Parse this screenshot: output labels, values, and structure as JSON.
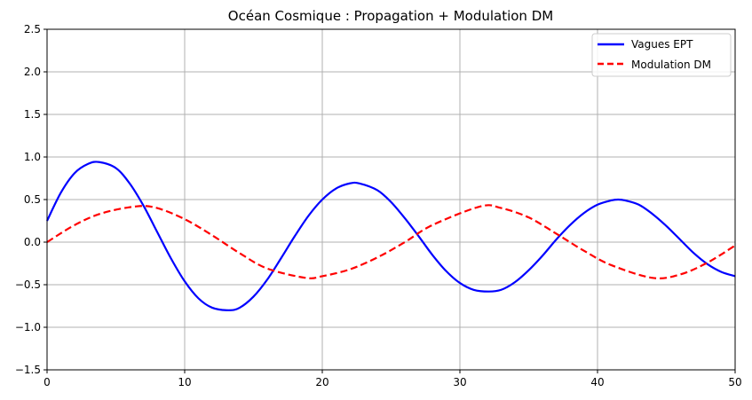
{
  "chart_data": {
    "type": "line",
    "title": "Océan Cosmique : Propagation + Modulation DM",
    "xlabel": "",
    "ylabel": "",
    "xlim": [
      0,
      50
    ],
    "ylim": [
      -1.5,
      2.5
    ],
    "xticks": [
      0,
      10,
      20,
      30,
      40,
      50
    ],
    "yticks": [
      -1.5,
      -1.0,
      -0.5,
      0.0,
      0.5,
      1.0,
      1.5,
      2.0,
      2.5
    ],
    "xtick_labels": [
      "0",
      "10",
      "20",
      "30",
      "40",
      "50"
    ],
    "ytick_labels": [
      "−1.5",
      "−1.0",
      "−0.5",
      "0.0",
      "0.5",
      "1.0",
      "1.5",
      "2.0",
      "2.5"
    ],
    "grid": true,
    "legend_position": "top-right",
    "series": [
      {
        "name": "Vagues EPT",
        "color": "#0000ff",
        "style": "solid",
        "x": [
          0,
          1,
          2,
          3,
          3.8,
          5,
          6,
          7,
          8,
          9,
          10,
          11,
          12,
          13.2,
          14,
          15,
          16,
          17,
          18,
          19,
          20,
          21,
          22,
          22.7,
          24,
          25,
          26,
          27,
          28,
          29,
          30,
          31,
          32.1,
          33,
          34,
          35,
          36,
          37,
          38,
          39,
          40,
          41,
          41.5,
          42,
          43,
          44,
          45,
          46,
          47,
          48,
          49,
          50
        ],
        "y": [
          0.25,
          0.58,
          0.81,
          0.92,
          0.94,
          0.87,
          0.69,
          0.43,
          0.12,
          -0.19,
          -0.46,
          -0.66,
          -0.77,
          -0.8,
          -0.77,
          -0.64,
          -0.44,
          -0.19,
          0.07,
          0.31,
          0.5,
          0.63,
          0.69,
          0.69,
          0.61,
          0.47,
          0.28,
          0.07,
          -0.15,
          -0.34,
          -0.48,
          -0.56,
          -0.58,
          -0.56,
          -0.47,
          -0.33,
          -0.16,
          0.03,
          0.2,
          0.34,
          0.44,
          0.49,
          0.5,
          0.49,
          0.44,
          0.33,
          0.19,
          0.03,
          -0.13,
          -0.26,
          -0.35,
          -0.4
        ]
      },
      {
        "name": "Modulation DM",
        "color": "#ff0000",
        "style": "dashed",
        "x": [
          0,
          2,
          4,
          6.5,
          8,
          10,
          12,
          14,
          16,
          18.8,
          20,
          22,
          24,
          26,
          28,
          31.5,
          33,
          35,
          37,
          39,
          41,
          44,
          46,
          48,
          50
        ],
        "y": [
          0.0,
          0.2,
          0.34,
          0.42,
          0.4,
          0.27,
          0.08,
          -0.13,
          -0.31,
          -0.42,
          -0.4,
          -0.32,
          -0.18,
          0.0,
          0.2,
          0.42,
          0.4,
          0.29,
          0.1,
          -0.1,
          -0.27,
          -0.42,
          -0.38,
          -0.24,
          -0.04
        ]
      }
    ]
  }
}
